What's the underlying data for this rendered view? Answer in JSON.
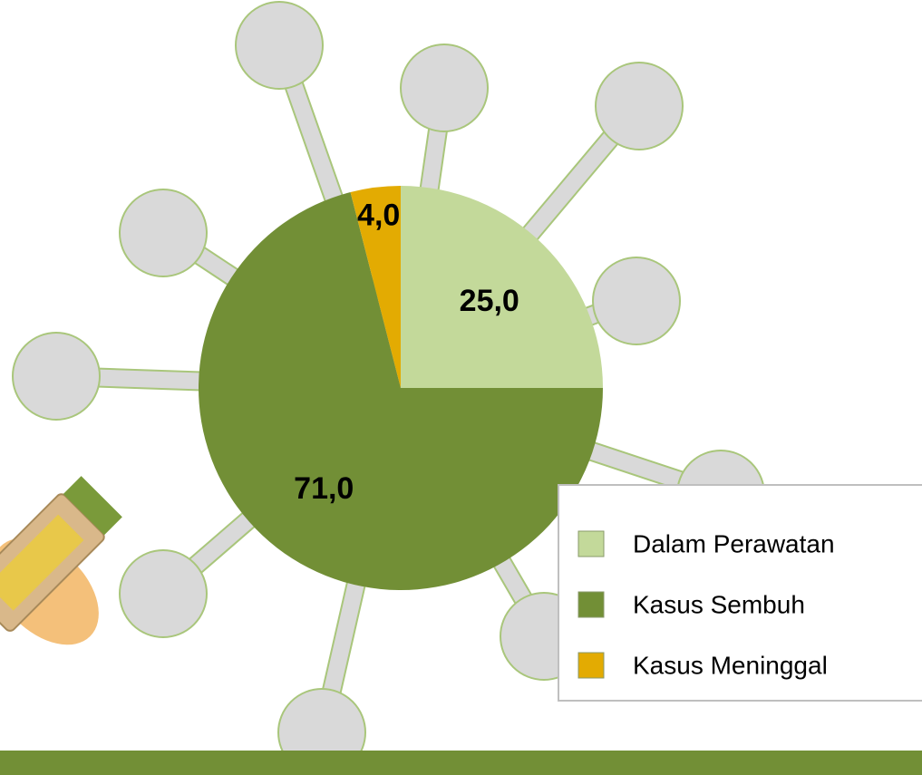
{
  "chart_data": {
    "type": "pie",
    "categories": [
      "Dalam Perawatan",
      "Kasus Sembuh",
      "Kasus Meninggal"
    ],
    "values": [
      25,
      71,
      4
    ],
    "value_labels": [
      "25,0",
      "71,0",
      "4,0"
    ],
    "colors": [
      "#c3d99a",
      "#728f36",
      "#e3ab02"
    ],
    "legend": "bottom-right"
  }
}
